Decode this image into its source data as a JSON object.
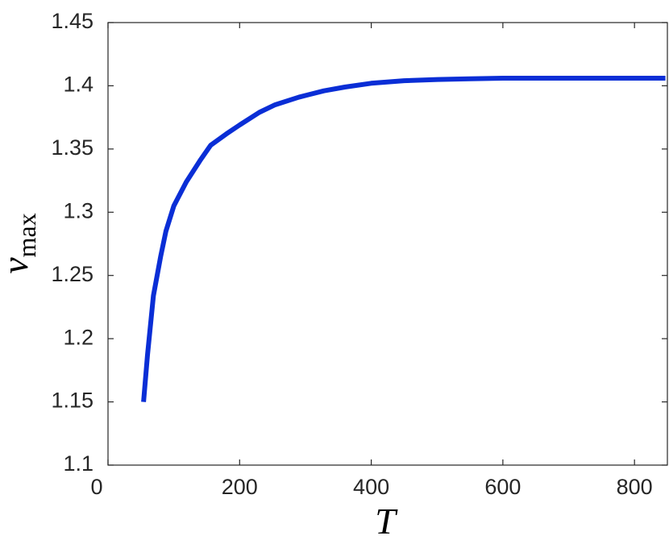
{
  "chart_data": {
    "type": "line",
    "x_label": "T",
    "y_label": {
      "symbol": "v",
      "subscript": "max"
    },
    "x": [
      54,
      60,
      69,
      80,
      88,
      100,
      119,
      140,
      156,
      180,
      200,
      230,
      254,
      290,
      328,
      360,
      400,
      450,
      501,
      550,
      600,
      700,
      847
    ],
    "series": [
      {
        "color": "#0a2ed6",
        "values": [
          1.15,
          1.187,
          1.234,
          1.265,
          1.285,
          1.305,
          1.324,
          1.341,
          1.353,
          1.362,
          1.369,
          1.379,
          1.385,
          1.391,
          1.396,
          1.399,
          1.402,
          1.404,
          1.405,
          1.4055,
          1.406,
          1.406,
          1.406
        ]
      }
    ],
    "xlim": [
      0,
      850
    ],
    "ylim": [
      1.1,
      1.45
    ],
    "xticks": [
      0,
      200,
      400,
      600,
      800
    ],
    "yticks": [
      1.1,
      1.15,
      1.2,
      1.25,
      1.3,
      1.35,
      1.4,
      1.45
    ]
  }
}
